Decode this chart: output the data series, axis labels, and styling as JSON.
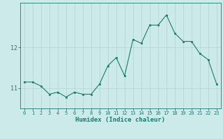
{
  "xlabel": "Humidex (Indice chaleur)",
  "ylabel": "",
  "x": [
    0,
    1,
    2,
    3,
    4,
    5,
    6,
    7,
    8,
    9,
    10,
    11,
    12,
    13,
    14,
    15,
    16,
    17,
    18,
    19,
    20,
    21,
    22,
    23
  ],
  "y": [
    11.15,
    11.15,
    11.05,
    10.85,
    10.9,
    10.78,
    10.9,
    10.85,
    10.85,
    11.1,
    11.55,
    11.75,
    11.3,
    12.2,
    12.1,
    12.55,
    12.55,
    12.8,
    12.35,
    12.15,
    12.15,
    11.85,
    11.7,
    11.1
  ],
  "line_color": "#1a7a6e",
  "marker_color": "#1a7a6e",
  "bg_color": "#cceaea",
  "grid_color": "#b0d4d4",
  "axis_color": "#1a7a6e",
  "tick_color": "#1a7a6e",
  "ylim": [
    10.5,
    13.1
  ],
  "yticks": [
    11,
    12
  ],
  "xlim": [
    -0.5,
    23.5
  ],
  "figsize": [
    3.2,
    2.0
  ],
  "dpi": 100
}
